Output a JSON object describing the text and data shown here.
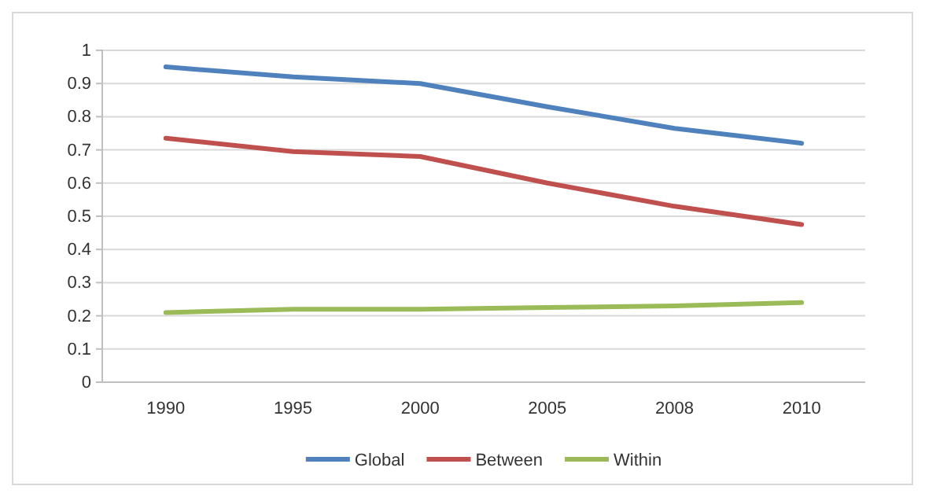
{
  "chart_data": {
    "type": "line",
    "categories": [
      "1990",
      "1995",
      "2000",
      "2005",
      "2008",
      "2010"
    ],
    "series": [
      {
        "name": "Global",
        "color": "#4f81bd",
        "values": [
          0.95,
          0.92,
          0.9,
          0.83,
          0.765,
          0.72
        ]
      },
      {
        "name": "Between",
        "color": "#c0504d",
        "values": [
          0.735,
          0.695,
          0.68,
          0.6,
          0.53,
          0.475
        ]
      },
      {
        "name": "Within",
        "color": "#9bbb59",
        "values": [
          0.21,
          0.22,
          0.22,
          0.225,
          0.23,
          0.24
        ]
      }
    ],
    "ylim": [
      0,
      1
    ],
    "yticks": [
      0,
      0.1,
      0.2,
      0.3,
      0.4,
      0.5,
      0.6,
      0.7,
      0.8,
      0.9,
      1
    ],
    "grid": "y",
    "legend": "bottom",
    "marker": "none",
    "line_style": "solid"
  }
}
